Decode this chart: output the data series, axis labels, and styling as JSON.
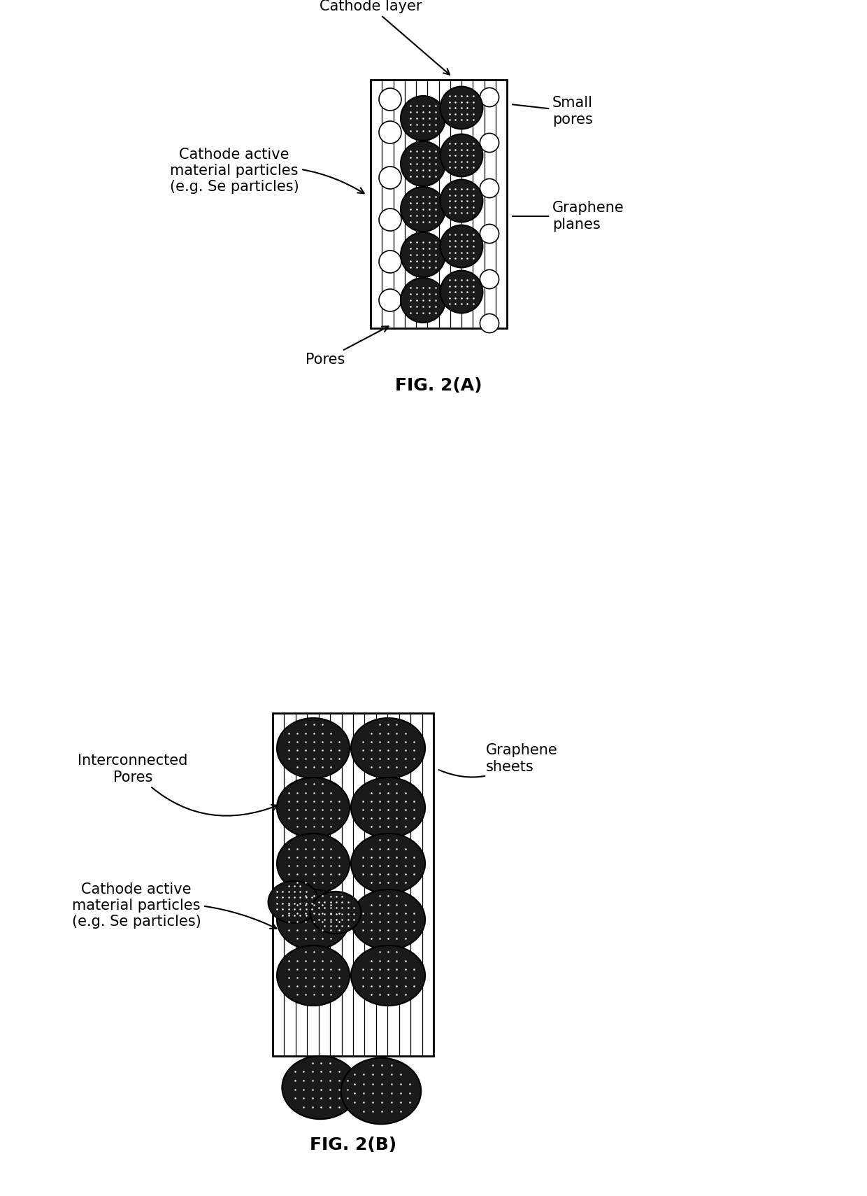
{
  "fig_title_a": "FIG. 2(A)",
  "fig_title_b": "FIG. 2(B)",
  "bg_color": "#ffffff",
  "fig_a": {
    "label_cathode_layer": "Cathode layer",
    "label_small_pores": "Small\npores",
    "label_graphene_planes": "Graphene\nplanes",
    "label_cathode_active": "Cathode active\nmaterial particles\n(e.g. Se particles)",
    "label_pores": "Pores"
  },
  "fig_b": {
    "label_interconnected": "Interconnected\nPores",
    "label_graphene_sheets": "Graphene\nsheets",
    "label_cathode_active": "Cathode active\nmaterial particles\n(e.g. Se particles)"
  }
}
